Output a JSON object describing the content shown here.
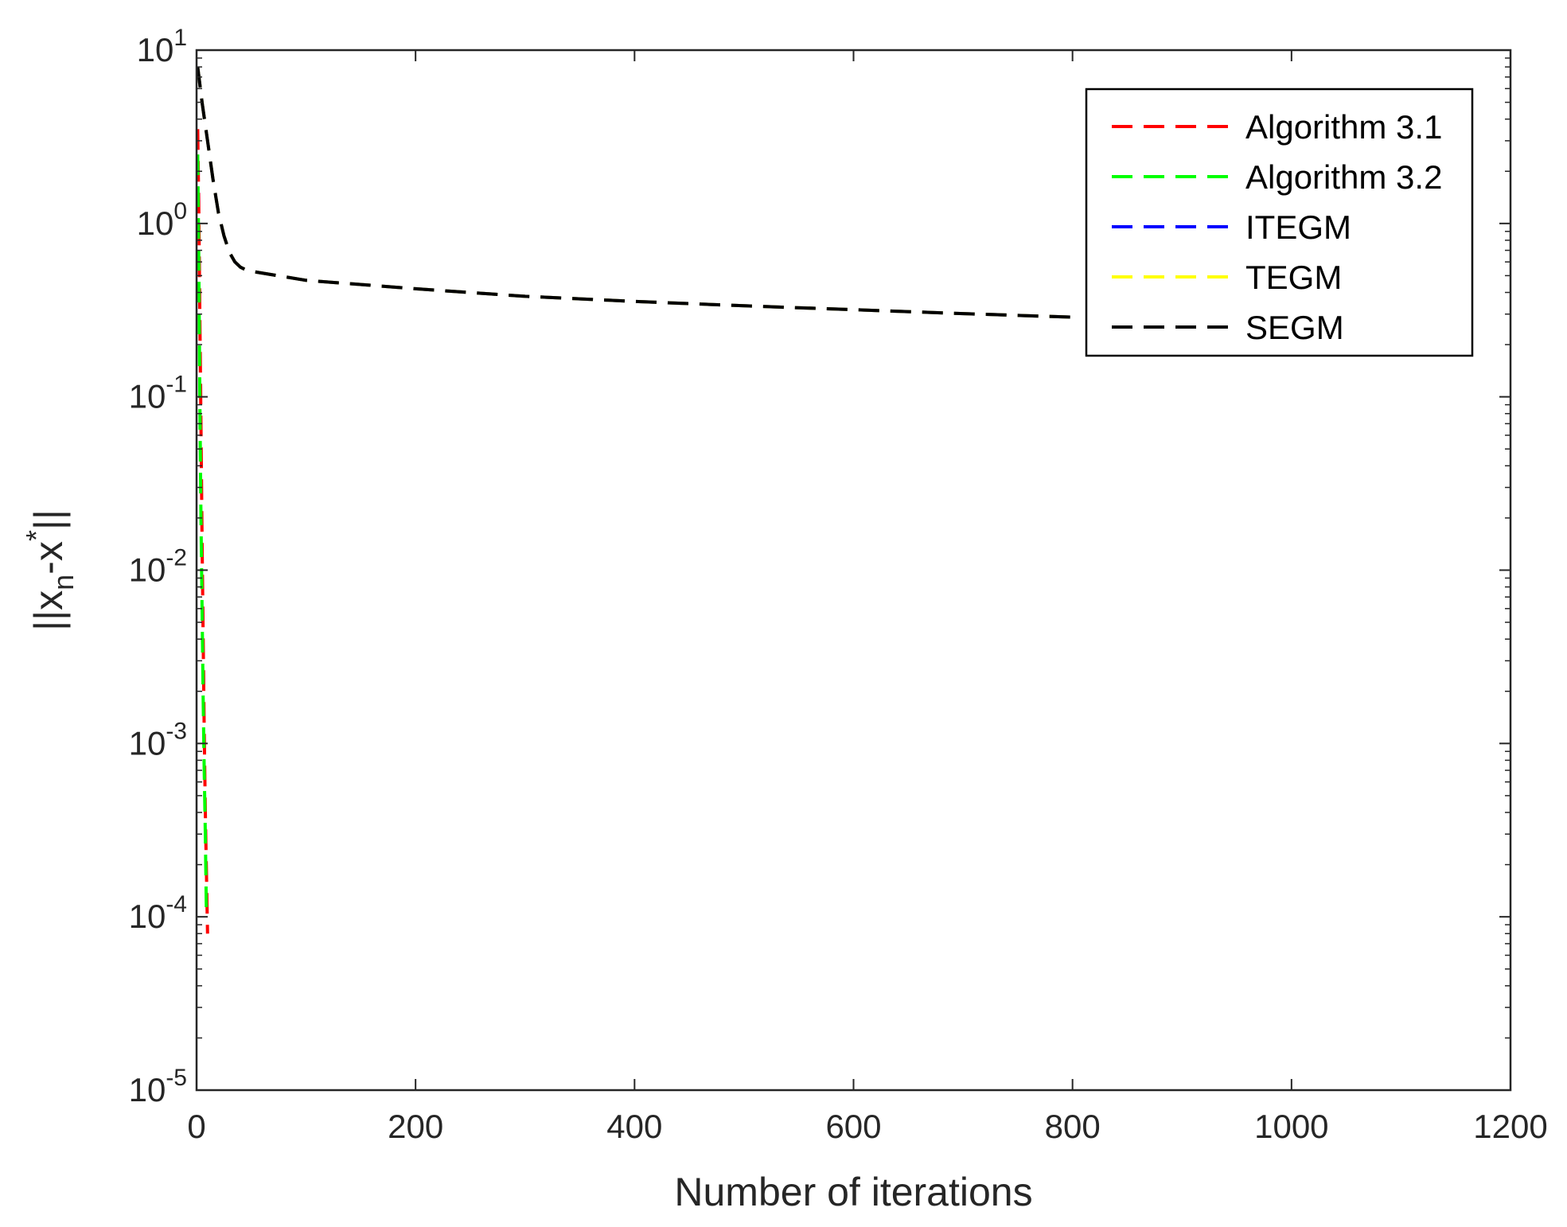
{
  "chart_data": {
    "type": "line",
    "title": "",
    "xlabel": "Number of iterations",
    "ylabel": "||x_n-x*||",
    "ylabel_parts": {
      "pre": "||x",
      "sub": "n",
      "mid": "-x",
      "sup": "*",
      "post": "||"
    },
    "xscale": "linear",
    "yscale": "log",
    "xlim": [
      0,
      1200
    ],
    "ylim": [
      1e-05,
      10
    ],
    "xticks": [
      0,
      200,
      400,
      600,
      800,
      1000,
      1200
    ],
    "xtick_labels": [
      "0",
      "200",
      "400",
      "600",
      "800",
      "1000",
      "1200"
    ],
    "yticks": [
      {
        "value": 10,
        "base": "10",
        "exp": "1"
      },
      {
        "value": 1,
        "base": "10",
        "exp": "0"
      },
      {
        "value": 0.1,
        "base": "10",
        "exp": "-1"
      },
      {
        "value": 0.01,
        "base": "10",
        "exp": "-2"
      },
      {
        "value": 0.001,
        "base": "10",
        "exp": "-3"
      },
      {
        "value": 0.0001,
        "base": "10",
        "exp": "-4"
      },
      {
        "value": 1e-05,
        "base": "10",
        "exp": "-5"
      }
    ],
    "grid": false,
    "box": true,
    "legend_position": "top-right",
    "series": [
      {
        "name": "Algorithm 3.1",
        "color": "#ff0000",
        "line_style": "dashed",
        "x": [
          1,
          2,
          3,
          4,
          5,
          6,
          7,
          8,
          9,
          10
        ],
        "y": [
          3.5,
          1.2,
          0.3,
          0.07,
          0.015,
          0.004,
          0.0012,
          0.0004,
          0.00018,
          8e-05
        ]
      },
      {
        "name": "Algorithm 3.2",
        "color": "#00ff00",
        "line_style": "dashed",
        "x": [
          1,
          2,
          3,
          4,
          5,
          6,
          7,
          8,
          9
        ],
        "y": [
          2.5,
          0.6,
          0.1,
          0.02,
          0.006,
          0.0018,
          0.0007,
          0.0003,
          0.0001
        ]
      },
      {
        "name": "ITEGM",
        "color": "#0000ff",
        "line_style": "dashed",
        "x": [
          1,
          5,
          10,
          15,
          20,
          25,
          30,
          35,
          40,
          45,
          50,
          100,
          200,
          300,
          400,
          500,
          600,
          700,
          800
        ],
        "y": [
          8,
          5,
          3,
          1.8,
          1.15,
          0.85,
          0.68,
          0.6,
          0.56,
          0.54,
          0.53,
          0.47,
          0.42,
          0.38,
          0.355,
          0.335,
          0.318,
          0.302,
          0.288
        ]
      },
      {
        "name": "TEGM",
        "color": "#ffff00",
        "line_style": "dashed",
        "x": [
          1,
          5,
          10,
          15,
          20,
          25,
          30,
          35,
          40,
          45,
          50,
          100,
          200,
          300,
          400,
          500,
          600,
          700,
          800
        ],
        "y": [
          8,
          5,
          3,
          1.8,
          1.15,
          0.85,
          0.68,
          0.6,
          0.56,
          0.54,
          0.53,
          0.47,
          0.42,
          0.38,
          0.355,
          0.335,
          0.318,
          0.302,
          0.288
        ]
      },
      {
        "name": "SEGM",
        "color": "#000000",
        "line_style": "dashed",
        "x": [
          1,
          5,
          10,
          15,
          20,
          25,
          30,
          35,
          40,
          45,
          50,
          100,
          200,
          300,
          400,
          500,
          600,
          700,
          800
        ],
        "y": [
          8,
          5,
          3,
          1.8,
          1.15,
          0.85,
          0.68,
          0.6,
          0.56,
          0.54,
          0.53,
          0.47,
          0.42,
          0.38,
          0.355,
          0.335,
          0.318,
          0.302,
          0.288
        ]
      }
    ]
  }
}
